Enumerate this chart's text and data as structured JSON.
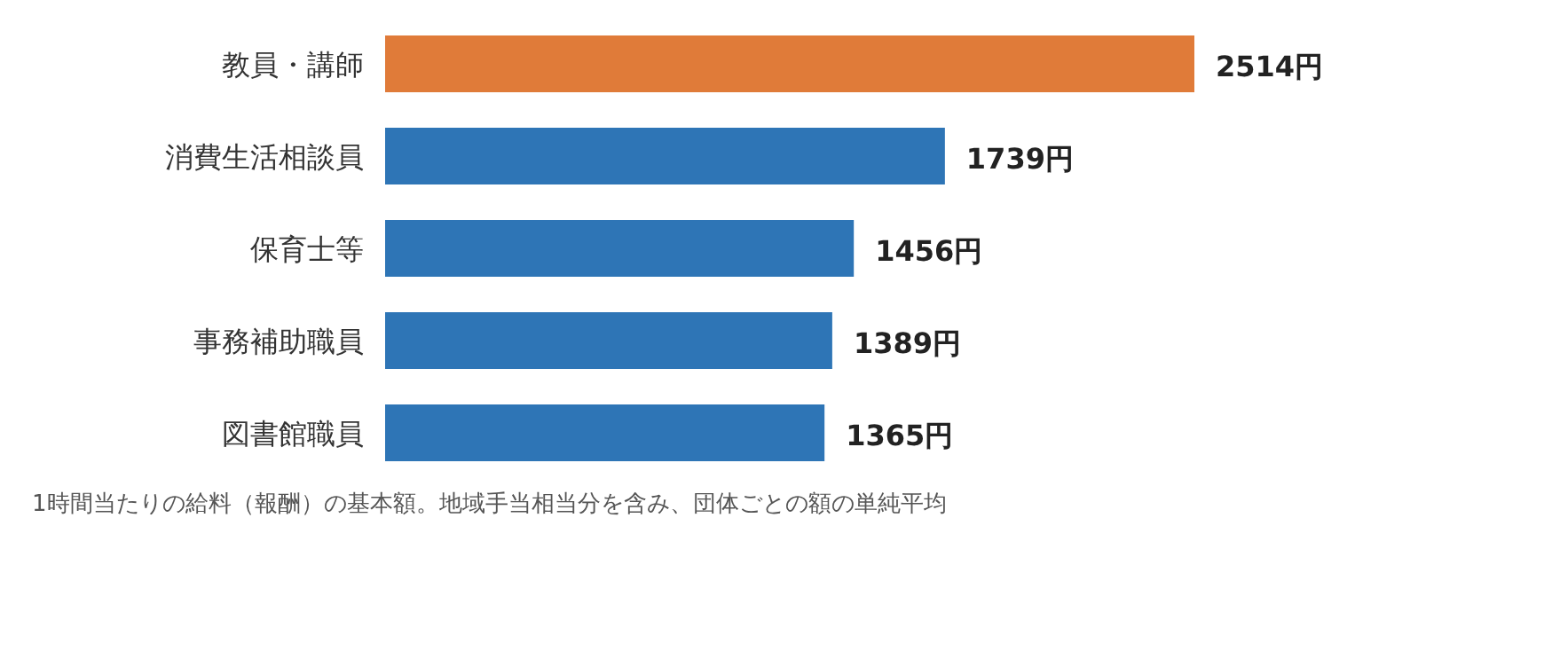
{
  "chart_data": {
    "type": "bar",
    "orientation": "horizontal",
    "categories": [
      "教員・講師",
      "消費生活相談員",
      "保育士等",
      "事務補助職員",
      "図書館職員"
    ],
    "values": [
      2514,
      1739,
      1456,
      1389,
      1365
    ],
    "colors": [
      "#e07b39",
      "#2e75b6",
      "#2e75b6",
      "#2e75b6",
      "#2e75b6"
    ],
    "value_labels": [
      "2514円",
      "1739円",
      "1456円",
      "1389円",
      "1365円"
    ],
    "annotations": [
      "1時間当たりの給料（報酬）の基本額。地域手当相当分を含み、団体ごとの額の単純平均"
    ]
  }
}
